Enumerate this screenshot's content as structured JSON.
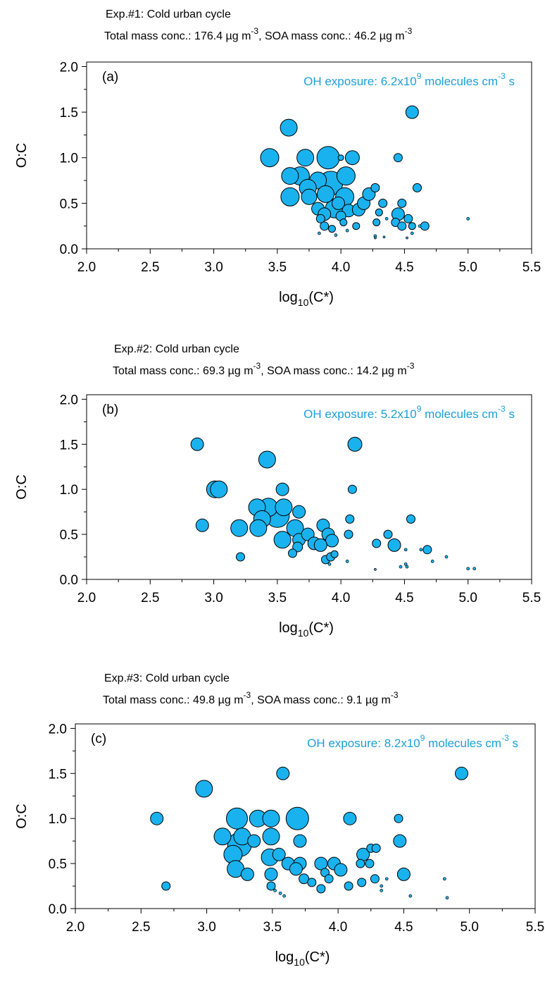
{
  "colors": {
    "marker_fill": "#1ab2ee",
    "marker_stroke": "#000000",
    "annotation": "#1aa0d8"
  },
  "chart_data": [
    {
      "type": "scatter",
      "header_line1": "Exp.#1: Cold urban cycle",
      "header_total_label": "Total mass conc.: 176.4 µg m",
      "header_soa_label": ", SOA mass conc.: 46.2 µg m",
      "header_unit_exp": "-3",
      "panel_label": "(a)",
      "oh_label": "OH exposure: 6.2x10",
      "oh_exp": "9",
      "oh_unit": " molecules cm",
      "oh_unit_exp": "-3",
      "oh_unit_end": " s",
      "xlabel_base": "log",
      "xlabel_sub": "10",
      "xlabel_end": "(C*)",
      "ylabel": "O:C",
      "xlim": [
        2.0,
        5.5
      ],
      "ylim": [
        0.0,
        2.05
      ],
      "xticks": [
        "2.0",
        "2.5",
        "3.0",
        "3.5",
        "4.0",
        "4.5",
        "5.0",
        "5.5"
      ],
      "yticks": [
        "0.0",
        "0.5",
        "1.0",
        "1.5",
        "2.0"
      ],
      "marker_size_meaning": "relative mass contribution",
      "points": [
        {
          "x": 3.59,
          "y": 1.33,
          "s": 12
        },
        {
          "x": 3.44,
          "y": 1.0,
          "s": 13
        },
        {
          "x": 3.72,
          "y": 1.0,
          "s": 12
        },
        {
          "x": 3.9,
          "y": 1.0,
          "s": 16
        },
        {
          "x": 4.0,
          "y": 1.0,
          "s": 4
        },
        {
          "x": 4.09,
          "y": 1.0,
          "s": 10
        },
        {
          "x": 3.6,
          "y": 0.8,
          "s": 12
        },
        {
          "x": 3.68,
          "y": 0.8,
          "s": 13
        },
        {
          "x": 3.82,
          "y": 0.75,
          "s": 12
        },
        {
          "x": 3.92,
          "y": 0.72,
          "s": 17
        },
        {
          "x": 4.04,
          "y": 0.8,
          "s": 13
        },
        {
          "x": 3.74,
          "y": 0.67,
          "s": 12
        },
        {
          "x": 3.6,
          "y": 0.57,
          "s": 13
        },
        {
          "x": 3.75,
          "y": 0.57,
          "s": 11
        },
        {
          "x": 3.88,
          "y": 0.6,
          "s": 12
        },
        {
          "x": 4.03,
          "y": 0.57,
          "s": 13
        },
        {
          "x": 3.98,
          "y": 0.5,
          "s": 9
        },
        {
          "x": 3.82,
          "y": 0.44,
          "s": 9
        },
        {
          "x": 3.95,
          "y": 0.44,
          "s": 13
        },
        {
          "x": 4.06,
          "y": 0.42,
          "s": 9
        },
        {
          "x": 3.87,
          "y": 0.38,
          "s": 9
        },
        {
          "x": 3.84,
          "y": 0.33,
          "s": 6
        },
        {
          "x": 4.0,
          "y": 0.36,
          "s": 7
        },
        {
          "x": 4.14,
          "y": 0.43,
          "s": 9
        },
        {
          "x": 4.18,
          "y": 0.5,
          "s": 9
        },
        {
          "x": 4.22,
          "y": 0.6,
          "s": 9
        },
        {
          "x": 4.27,
          "y": 0.67,
          "s": 6
        },
        {
          "x": 3.87,
          "y": 0.25,
          "s": 6
        },
        {
          "x": 3.93,
          "y": 0.22,
          "s": 5
        },
        {
          "x": 4.02,
          "y": 0.29,
          "s": 5
        },
        {
          "x": 4.12,
          "y": 0.25,
          "s": 5
        },
        {
          "x": 4.28,
          "y": 0.29,
          "s": 5
        },
        {
          "x": 4.3,
          "y": 0.4,
          "s": 5
        },
        {
          "x": 4.33,
          "y": 0.5,
          "s": 6
        },
        {
          "x": 4.45,
          "y": 1.0,
          "s": 6
        },
        {
          "x": 4.45,
          "y": 0.38,
          "s": 9
        },
        {
          "x": 4.43,
          "y": 0.29,
          "s": 6
        },
        {
          "x": 4.48,
          "y": 0.5,
          "s": 6
        },
        {
          "x": 4.48,
          "y": 0.25,
          "s": 6
        },
        {
          "x": 4.53,
          "y": 0.33,
          "s": 6
        },
        {
          "x": 4.56,
          "y": 0.25,
          "s": 5
        },
        {
          "x": 4.6,
          "y": 0.67,
          "s": 6
        },
        {
          "x": 4.66,
          "y": 0.25,
          "s": 6
        },
        {
          "x": 4.56,
          "y": 1.5,
          "s": 9
        },
        {
          "x": 3.83,
          "y": 0.17,
          "s": 2
        },
        {
          "x": 3.96,
          "y": 0.15,
          "s": 2
        },
        {
          "x": 4.05,
          "y": 0.2,
          "s": 2
        },
        {
          "x": 4.27,
          "y": 0.14,
          "s": 2
        },
        {
          "x": 4.27,
          "y": 0.12,
          "s": 1.5
        },
        {
          "x": 4.34,
          "y": 0.13,
          "s": 1.5
        },
        {
          "x": 4.52,
          "y": 0.12,
          "s": 1.5
        },
        {
          "x": 4.56,
          "y": 0.17,
          "s": 2
        },
        {
          "x": 4.62,
          "y": 0.25,
          "s": 2
        },
        {
          "x": 4.36,
          "y": 0.33,
          "s": 2
        },
        {
          "x": 5.0,
          "y": 0.33,
          "s": 2
        }
      ]
    },
    {
      "type": "scatter",
      "header_line1": "Exp.#2: Cold urban cycle",
      "header_total_label": "Total mass conc.: 69.3 µg m",
      "header_soa_label": ", SOA mass conc.: 14.2 µg m",
      "header_unit_exp": "-3",
      "panel_label": "(b)",
      "oh_label": "OH exposure: 5.2x10",
      "oh_exp": "9",
      "oh_unit": " molecules cm",
      "oh_unit_exp": "-3",
      "oh_unit_end": " s",
      "xlabel_base": "log",
      "xlabel_sub": "10",
      "xlabel_end": "(C*)",
      "ylabel": "O:C",
      "xlim": [
        2.0,
        5.5
      ],
      "ylim": [
        0.0,
        2.05
      ],
      "xticks": [
        "2.0",
        "2.5",
        "3.0",
        "3.5",
        "4.0",
        "4.5",
        "5.0",
        "5.5"
      ],
      "yticks": [
        "0.0",
        "0.5",
        "1.0",
        "1.5",
        "2.0"
      ],
      "marker_size_meaning": "relative mass contribution",
      "points": [
        {
          "x": 2.87,
          "y": 1.5,
          "s": 9
        },
        {
          "x": 3.42,
          "y": 1.33,
          "s": 12
        },
        {
          "x": 4.11,
          "y": 1.5,
          "s": 10
        },
        {
          "x": 3.01,
          "y": 1.0,
          "s": 12
        },
        {
          "x": 3.04,
          "y": 1.0,
          "s": 12
        },
        {
          "x": 3.54,
          "y": 1.0,
          "s": 9
        },
        {
          "x": 4.09,
          "y": 1.0,
          "s": 6
        },
        {
          "x": 3.34,
          "y": 0.8,
          "s": 12
        },
        {
          "x": 3.43,
          "y": 0.8,
          "s": 13
        },
        {
          "x": 3.55,
          "y": 0.8,
          "s": 12
        },
        {
          "x": 3.38,
          "y": 0.67,
          "s": 12
        },
        {
          "x": 3.5,
          "y": 0.71,
          "s": 17
        },
        {
          "x": 3.67,
          "y": 0.75,
          "s": 9
        },
        {
          "x": 2.91,
          "y": 0.6,
          "s": 9
        },
        {
          "x": 3.2,
          "y": 0.57,
          "s": 12
        },
        {
          "x": 3.35,
          "y": 0.57,
          "s": 12
        },
        {
          "x": 3.64,
          "y": 0.57,
          "s": 12
        },
        {
          "x": 3.86,
          "y": 0.6,
          "s": 9
        },
        {
          "x": 4.07,
          "y": 0.67,
          "s": 6
        },
        {
          "x": 3.54,
          "y": 0.44,
          "s": 12
        },
        {
          "x": 3.67,
          "y": 0.44,
          "s": 9
        },
        {
          "x": 3.74,
          "y": 0.5,
          "s": 9
        },
        {
          "x": 3.79,
          "y": 0.4,
          "s": 9
        },
        {
          "x": 3.9,
          "y": 0.5,
          "s": 9
        },
        {
          "x": 3.93,
          "y": 0.43,
          "s": 9
        },
        {
          "x": 3.84,
          "y": 0.38,
          "s": 9
        },
        {
          "x": 3.66,
          "y": 0.36,
          "s": 7
        },
        {
          "x": 3.62,
          "y": 0.29,
          "s": 6
        },
        {
          "x": 4.06,
          "y": 0.5,
          "s": 6
        },
        {
          "x": 4.28,
          "y": 0.4,
          "s": 6
        },
        {
          "x": 4.37,
          "y": 0.5,
          "s": 6
        },
        {
          "x": 4.42,
          "y": 0.38,
          "s": 9
        },
        {
          "x": 4.55,
          "y": 0.67,
          "s": 6
        },
        {
          "x": 4.68,
          "y": 0.33,
          "s": 6
        },
        {
          "x": 3.21,
          "y": 0.25,
          "s": 6
        },
        {
          "x": 3.88,
          "y": 0.22,
          "s": 6
        },
        {
          "x": 3.92,
          "y": 0.25,
          "s": 6
        },
        {
          "x": 3.95,
          "y": 0.28,
          "s": 5
        },
        {
          "x": 3.91,
          "y": 0.17,
          "s": 2
        },
        {
          "x": 4.05,
          "y": 0.2,
          "s": 2
        },
        {
          "x": 4.27,
          "y": 0.11,
          "s": 1.5
        },
        {
          "x": 4.47,
          "y": 0.14,
          "s": 2
        },
        {
          "x": 4.51,
          "y": 0.17,
          "s": 2
        },
        {
          "x": 4.52,
          "y": 0.14,
          "s": 2
        },
        {
          "x": 4.51,
          "y": 0.33,
          "s": 2
        },
        {
          "x": 4.63,
          "y": 0.33,
          "s": 2
        },
        {
          "x": 4.72,
          "y": 0.2,
          "s": 2
        },
        {
          "x": 4.83,
          "y": 0.25,
          "s": 2
        },
        {
          "x": 5.0,
          "y": 0.12,
          "s": 2
        },
        {
          "x": 5.05,
          "y": 0.12,
          "s": 2
        }
      ]
    },
    {
      "type": "scatter",
      "header_line1": "Exp.#3: Cold urban cycle",
      "header_total_label": "Total mass conc.: 49.8 µg m",
      "header_soa_label": ", SOA mass conc.: 9.1 µg m",
      "header_unit_exp": "-3",
      "panel_label": "(c)",
      "oh_label": "OH exposure: 8.2x10",
      "oh_exp": "9",
      "oh_unit": " molecules cm",
      "oh_unit_exp": "-3",
      "oh_unit_end": " s",
      "xlabel_base": "log",
      "xlabel_sub": "10",
      "xlabel_end": "(C*)",
      "ylabel": "O:C",
      "xlim": [
        2.0,
        5.5
      ],
      "ylim": [
        0.0,
        2.05
      ],
      "xticks": [
        "2.0",
        "2.5",
        "3.0",
        "3.5",
        "4.0",
        "4.5",
        "5.0",
        "5.5"
      ],
      "yticks": [
        "0.0",
        "0.5",
        "1.0",
        "1.5",
        "2.0"
      ],
      "marker_size_meaning": "relative mass contribution",
      "points": [
        {
          "x": 2.98,
          "y": 1.33,
          "s": 12
        },
        {
          "x": 3.58,
          "y": 1.5,
          "s": 9
        },
        {
          "x": 4.94,
          "y": 1.5,
          "s": 9
        },
        {
          "x": 2.62,
          "y": 1.0,
          "s": 9
        },
        {
          "x": 3.23,
          "y": 1.0,
          "s": 15
        },
        {
          "x": 3.39,
          "y": 1.0,
          "s": 12
        },
        {
          "x": 3.49,
          "y": 1.0,
          "s": 12
        },
        {
          "x": 3.69,
          "y": 1.0,
          "s": 16
        },
        {
          "x": 4.09,
          "y": 1.0,
          "s": 9
        },
        {
          "x": 4.46,
          "y": 1.0,
          "s": 6
        },
        {
          "x": 3.12,
          "y": 0.8,
          "s": 12
        },
        {
          "x": 3.27,
          "y": 0.8,
          "s": 12
        },
        {
          "x": 3.49,
          "y": 0.8,
          "s": 12
        },
        {
          "x": 3.36,
          "y": 0.75,
          "s": 9
        },
        {
          "x": 3.71,
          "y": 0.75,
          "s": 9
        },
        {
          "x": 3.2,
          "y": 0.6,
          "s": 13
        },
        {
          "x": 3.25,
          "y": 0.71,
          "s": 17
        },
        {
          "x": 3.48,
          "y": 0.57,
          "s": 12
        },
        {
          "x": 3.55,
          "y": 0.6,
          "s": 9
        },
        {
          "x": 3.62,
          "y": 0.5,
          "s": 9
        },
        {
          "x": 3.71,
          "y": 0.5,
          "s": 9
        },
        {
          "x": 3.87,
          "y": 0.5,
          "s": 9
        },
        {
          "x": 3.97,
          "y": 0.5,
          "s": 9
        },
        {
          "x": 4.02,
          "y": 0.43,
          "s": 9
        },
        {
          "x": 3.22,
          "y": 0.44,
          "s": 12
        },
        {
          "x": 3.31,
          "y": 0.38,
          "s": 9
        },
        {
          "x": 3.49,
          "y": 0.38,
          "s": 9
        },
        {
          "x": 3.68,
          "y": 0.44,
          "s": 9
        },
        {
          "x": 3.74,
          "y": 0.33,
          "s": 7
        },
        {
          "x": 3.8,
          "y": 0.29,
          "s": 6
        },
        {
          "x": 3.9,
          "y": 0.4,
          "s": 6
        },
        {
          "x": 3.93,
          "y": 0.33,
          "s": 6
        },
        {
          "x": 4.17,
          "y": 0.5,
          "s": 6
        },
        {
          "x": 4.19,
          "y": 0.6,
          "s": 9
        },
        {
          "x": 4.24,
          "y": 0.5,
          "s": 6
        },
        {
          "x": 4.25,
          "y": 0.67,
          "s": 6
        },
        {
          "x": 4.29,
          "y": 0.67,
          "s": 6
        },
        {
          "x": 4.47,
          "y": 0.75,
          "s": 9
        },
        {
          "x": 4.5,
          "y": 0.38,
          "s": 9
        },
        {
          "x": 2.69,
          "y": 0.25,
          "s": 6
        },
        {
          "x": 3.49,
          "y": 0.25,
          "s": 6
        },
        {
          "x": 3.87,
          "y": 0.22,
          "s": 6
        },
        {
          "x": 4.08,
          "y": 0.25,
          "s": 6
        },
        {
          "x": 4.18,
          "y": 0.29,
          "s": 6
        },
        {
          "x": 4.28,
          "y": 0.33,
          "s": 6
        },
        {
          "x": 4.33,
          "y": 0.25,
          "s": 2
        },
        {
          "x": 4.33,
          "y": 0.2,
          "s": 2
        },
        {
          "x": 4.37,
          "y": 0.33,
          "s": 2
        },
        {
          "x": 4.55,
          "y": 0.14,
          "s": 2
        },
        {
          "x": 3.52,
          "y": 0.2,
          "s": 2
        },
        {
          "x": 3.56,
          "y": 0.17,
          "s": 2
        },
        {
          "x": 3.59,
          "y": 0.14,
          "s": 2
        },
        {
          "x": 4.81,
          "y": 0.33,
          "s": 2
        },
        {
          "x": 4.83,
          "y": 0.12,
          "s": 2
        }
      ]
    }
  ]
}
